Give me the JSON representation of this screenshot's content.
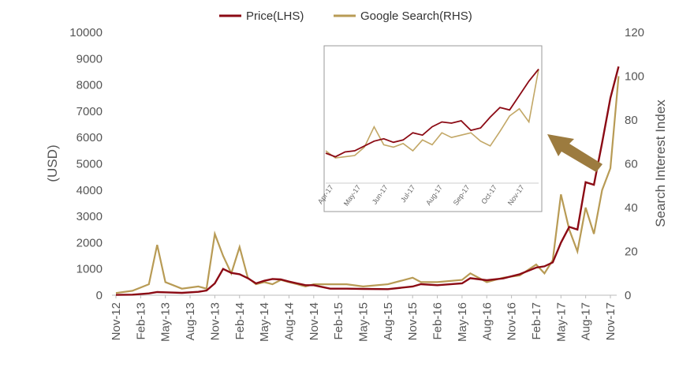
{
  "chart_data": {
    "type": "line",
    "title": "",
    "legend": {
      "position": "top",
      "entries": [
        "Price(LHS)",
        "Google Search(RHS)"
      ]
    },
    "colors": {
      "price": "#8B0A14",
      "search": "#B89B55",
      "arrow": "#9C7B3F"
    },
    "y_left": {
      "label": "(USD)",
      "ylim": [
        0,
        10000
      ],
      "ticks": [
        "0",
        "1000",
        "2000",
        "3000",
        "4000",
        "5000",
        "6000",
        "7000",
        "8000",
        "9000",
        "10000"
      ]
    },
    "y_right": {
      "label": "Search Interest Index",
      "ylim": [
        0,
        120
      ],
      "ticks": [
        "0",
        "20",
        "40",
        "60",
        "80",
        "100",
        "120"
      ]
    },
    "x_ticks": [
      "Nov-12",
      "Feb-13",
      "May-13",
      "Aug-13",
      "Nov-13",
      "Feb-14",
      "May-14",
      "Aug-14",
      "Nov-14",
      "Feb-15",
      "May-15",
      "Aug-15",
      "Nov-15",
      "Feb-16",
      "May-16",
      "Aug-16",
      "Nov-16",
      "Feb-17",
      "May-17",
      "Aug-17",
      "Nov-17"
    ],
    "series": [
      {
        "name": "Price(LHS)",
        "axis": "left",
        "x": [
          "Nov-12",
          "Jan-13",
          "Mar-13",
          "Apr-13",
          "May-13",
          "Jul-13",
          "Sep-13",
          "Oct-13",
          "Nov-13",
          "Dec-13",
          "Jan-14",
          "Feb-14",
          "Mar-14",
          "Apr-14",
          "May-14",
          "Jun-14",
          "Jul-14",
          "Aug-14",
          "Sep-14",
          "Oct-14",
          "Nov-14",
          "Jan-15",
          "Mar-15",
          "May-15",
          "Aug-15",
          "Nov-15",
          "Dec-15",
          "Feb-16",
          "May-16",
          "Jun-16",
          "Aug-16",
          "Oct-16",
          "Dec-16",
          "Feb-17",
          "Mar-17",
          "Apr-17",
          "May-17",
          "Jun-17",
          "Jul-17",
          "Aug-17",
          "Sep-17",
          "Oct-17",
          "Nov-17",
          "Dec-17"
        ],
        "values": [
          12,
          20,
          70,
          120,
          110,
          90,
          130,
          180,
          450,
          1000,
          850,
          800,
          650,
          450,
          550,
          620,
          600,
          520,
          450,
          380,
          380,
          250,
          250,
          240,
          230,
          330,
          420,
          380,
          450,
          650,
          570,
          640,
          800,
          1050,
          1100,
          1250,
          2000,
          2600,
          2500,
          4300,
          4200,
          5800,
          7500,
          8700
        ]
      },
      {
        "name": "Google Search(RHS)",
        "axis": "right",
        "x": [
          "Nov-12",
          "Jan-13",
          "Mar-13",
          "Apr-13",
          "May-13",
          "Jul-13",
          "Sep-13",
          "Oct-13",
          "Nov-13",
          "Dec-13",
          "Jan-14",
          "Feb-14",
          "Mar-14",
          "Apr-14",
          "May-14",
          "Jun-14",
          "Jul-14",
          "Aug-14",
          "Sep-14",
          "Oct-14",
          "Nov-14",
          "Jan-15",
          "Mar-15",
          "May-15",
          "Aug-15",
          "Nov-15",
          "Dec-15",
          "Feb-16",
          "May-16",
          "Jun-16",
          "Aug-16",
          "Oct-16",
          "Dec-16",
          "Feb-17",
          "Mar-17",
          "Apr-17",
          "May-17",
          "Jun-17",
          "Jul-17",
          "Aug-17",
          "Sep-17",
          "Oct-17",
          "Nov-17",
          "Dec-17"
        ],
        "values": [
          1,
          2,
          5,
          23,
          6,
          3,
          4,
          3,
          28,
          18,
          10,
          22,
          8,
          5,
          6,
          5,
          7,
          6,
          5,
          4,
          5,
          5,
          5,
          4,
          5,
          8,
          6,
          6,
          7,
          10,
          6,
          8,
          9,
          14,
          10,
          16,
          46,
          30,
          20,
          40,
          28,
          48,
          58,
          100
        ]
      }
    ],
    "inset": {
      "x_ticks": [
        "Apr-17",
        "May-17",
        "Jun-17",
        "Jul-17",
        "Aug-17",
        "Sep-17",
        "Oct-17",
        "Nov-17"
      ],
      "price": [
        25,
        22,
        26,
        27,
        31,
        35,
        37,
        34,
        36,
        42,
        40,
        47,
        51,
        50,
        52,
        44,
        46,
        55,
        63,
        61,
        73,
        85,
        95
      ],
      "search": [
        27,
        21,
        22,
        23,
        30,
        47,
        32,
        30,
        33,
        27,
        36,
        32,
        42,
        38,
        40,
        42,
        35,
        31,
        43,
        56,
        62,
        51,
        95
      ]
    }
  }
}
